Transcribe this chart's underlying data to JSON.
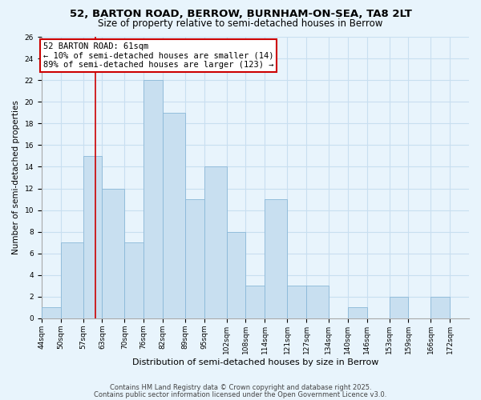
{
  "title1": "52, BARTON ROAD, BERROW, BURNHAM-ON-SEA, TA8 2LT",
  "title2": "Size of property relative to semi-detached houses in Berrow",
  "xlabel": "Distribution of semi-detached houses by size in Berrow",
  "ylabel": "Number of semi-detached properties",
  "bin_edges": [
    44,
    50,
    57,
    63,
    70,
    76,
    82,
    89,
    95,
    102,
    108,
    114,
    121,
    127,
    134,
    140,
    146,
    153,
    159,
    166,
    172
  ],
  "bar_heights": [
    1,
    7,
    15,
    12,
    7,
    22,
    19,
    11,
    14,
    8,
    3,
    11,
    3,
    3,
    0,
    1,
    0,
    2,
    0,
    2
  ],
  "bar_color": "#c8dff0",
  "bar_edge_color": "#8ab8d8",
  "grid_color": "#c8dff0",
  "bg_color": "#e8f4fc",
  "plot_bg_color": "#e8f4fc",
  "vline_x": 61,
  "vline_color": "#cc0000",
  "annotation_line1": "52 BARTON ROAD: 61sqm",
  "annotation_line2": "← 10% of semi-detached houses are smaller (14)",
  "annotation_line3": "89% of semi-detached houses are larger (123) →",
  "annotation_box_color": "#ffffff",
  "annotation_border_color": "#cc0000",
  "ylim": [
    0,
    26
  ],
  "yticks": [
    0,
    2,
    4,
    6,
    8,
    10,
    12,
    14,
    16,
    18,
    20,
    22,
    24,
    26
  ],
  "footer1": "Contains HM Land Registry data © Crown copyright and database right 2025.",
  "footer2": "Contains public sector information licensed under the Open Government Licence v3.0.",
  "title1_fontsize": 9.5,
  "title2_fontsize": 8.5,
  "tick_label_fontsize": 6.5,
  "axis_label_fontsize": 8,
  "annotation_fontsize": 7.5,
  "footer_fontsize": 6,
  "ylabel_fontsize": 7.5
}
